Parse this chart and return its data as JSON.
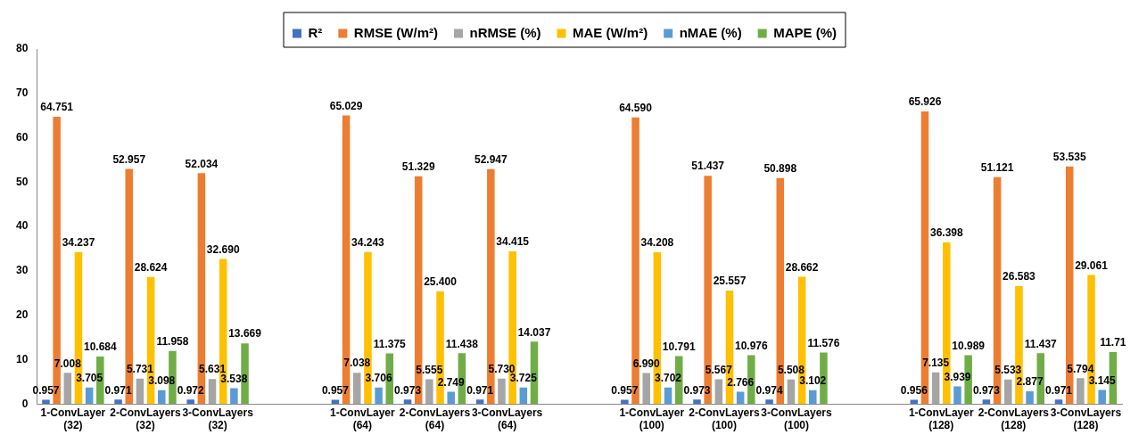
{
  "chart_data": {
    "type": "bar",
    "categories": [
      "1-ConvLayer (32)",
      "2-ConvLayers (32)",
      "3-ConvLayers (32)",
      null,
      "1-ConvLayer (64)",
      "2-ConvLayers (64)",
      "3-ConvLayers (64)",
      null,
      "1-ConvLayer (100)",
      "2-ConvLayers (100)",
      "3-ConvLayers (100)",
      null,
      "1-ConvLayer (128)",
      "2-ConvLayers (128)",
      "3-ConvLayers (128)"
    ],
    "series": [
      {
        "name": "R²",
        "color": "#4472c4",
        "values": [
          0.957,
          0.971,
          0.972,
          null,
          0.957,
          0.973,
          0.971,
          null,
          0.957,
          0.973,
          0.974,
          null,
          0.956,
          0.973,
          0.971
        ],
        "value_labels": [
          "0.957",
          "0.971",
          "0.972",
          null,
          "0.957",
          "0.973",
          "0.971",
          null,
          "0.957",
          "0.973",
          "0.974",
          null,
          "0.956",
          "0.973",
          "0.971"
        ]
      },
      {
        "name": "RMSE (W/m²)",
        "color": "#ed7d31",
        "values": [
          64.751,
          52.957,
          52.034,
          null,
          65.029,
          51.329,
          52.947,
          null,
          64.59,
          51.437,
          50.898,
          null,
          65.926,
          51.121,
          53.535
        ],
        "value_labels": [
          "64.751",
          "52.957",
          "52.034",
          null,
          "65.029",
          "51.329",
          "52.947",
          null,
          "64.590",
          "51.437",
          "50.898",
          null,
          "65.926",
          "51.121",
          "53.535"
        ]
      },
      {
        "name": "nRMSE (%)",
        "color": "#a5a5a5",
        "values": [
          7.008,
          5.731,
          5.631,
          null,
          7.038,
          5.555,
          5.73,
          null,
          6.99,
          5.567,
          5.508,
          null,
          7.135,
          5.533,
          5.794
        ],
        "value_labels": [
          "7.008",
          "5.731",
          "5.631",
          null,
          "7.038",
          "5.555",
          "5.730",
          null,
          "6.990",
          "5.567",
          "5.508",
          null,
          "7.135",
          "5.533",
          "5.794"
        ]
      },
      {
        "name": "MAE (W/m²)",
        "color": "#ffc000",
        "values": [
          34.237,
          28.624,
          32.69,
          null,
          34.243,
          25.4,
          34.415,
          null,
          34.208,
          25.557,
          28.662,
          null,
          36.398,
          26.583,
          29.061
        ],
        "value_labels": [
          "34.237",
          "28.624",
          "32.690",
          null,
          "34.243",
          "25.400",
          "34.415",
          null,
          "34.208",
          "25.557",
          "28.662",
          null,
          "36.398",
          "26.583",
          "29.061"
        ]
      },
      {
        "name": "nMAE (%)",
        "color": "#5b9bd5",
        "values": [
          3.705,
          3.098,
          3.538,
          null,
          3.706,
          2.749,
          3.725,
          null,
          3.702,
          2.766,
          3.102,
          null,
          3.939,
          2.877,
          3.145
        ],
        "value_labels": [
          "3.705",
          "3.098",
          "3.538",
          null,
          "3.706",
          "2.749",
          "3.725",
          null,
          "3.702",
          "2.766",
          "3.102",
          null,
          "3.939",
          "2.877",
          "3.145"
        ]
      },
      {
        "name": "MAPE (%)",
        "color": "#70ad47",
        "values": [
          10.684,
          11.958,
          13.669,
          null,
          11.375,
          11.438,
          14.037,
          null,
          10.791,
          10.976,
          11.576,
          null,
          10.989,
          11.437,
          11.71
        ],
        "value_labels": [
          "10.684",
          "11.958",
          "13.669",
          null,
          "11.375",
          "11.438",
          "14.037",
          null,
          "10.791",
          "10.976",
          "11.576",
          null,
          "10.989",
          "11.437",
          "11.71"
        ]
      }
    ],
    "ylim": [
      0,
      80
    ],
    "yticks": [
      0,
      10,
      20,
      30,
      40,
      50,
      60,
      70,
      80
    ],
    "grid": false,
    "legend": "top"
  }
}
